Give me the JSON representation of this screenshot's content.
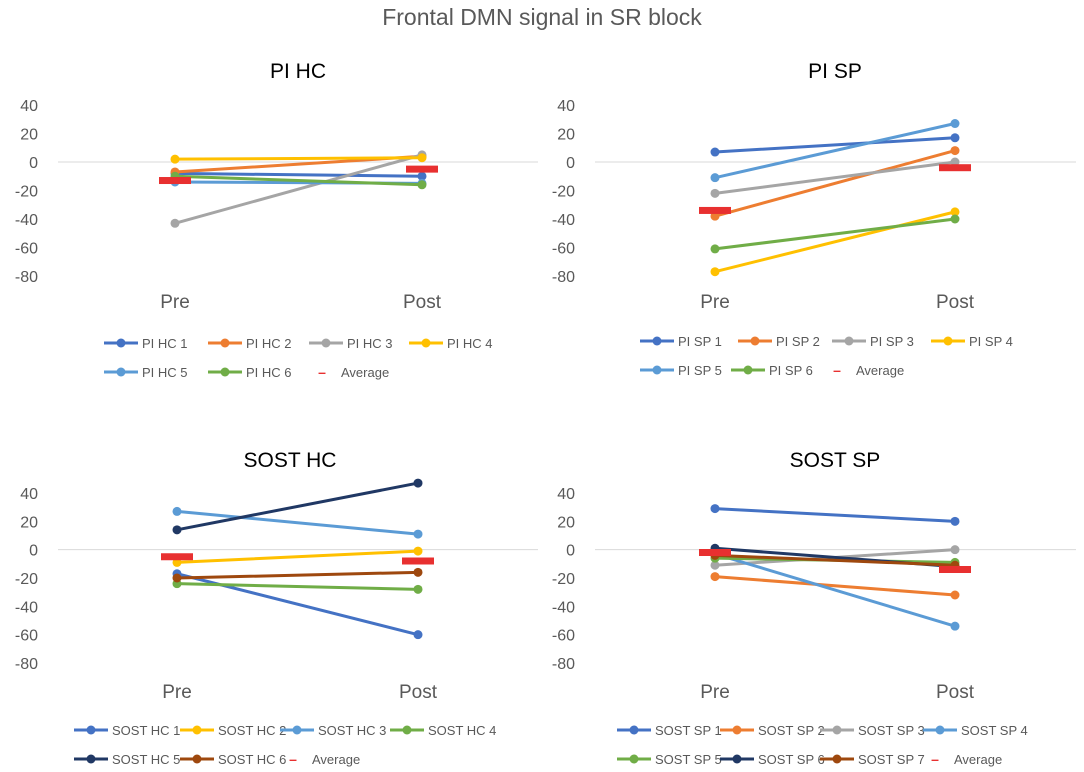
{
  "title": "Frontal DMN signal in SR block",
  "legend_average_marker": "–",
  "chart_data": [
    {
      "type": "line",
      "title": "PI HC",
      "categories": [
        "Pre",
        "Post"
      ],
      "ylim": [
        -80,
        40
      ],
      "yticks": [
        40,
        20,
        0,
        -20,
        -40,
        -60,
        -80
      ],
      "series": [
        {
          "name": "PI HC 1",
          "color": "#4472C4",
          "values": [
            -8,
            -10
          ]
        },
        {
          "name": "PI HC 2",
          "color": "#ED7D31",
          "values": [
            -7,
            4
          ]
        },
        {
          "name": "PI HC 3",
          "color": "#A5A5A5",
          "values": [
            -43,
            5
          ]
        },
        {
          "name": "PI HC 4",
          "color": "#FFC000",
          "values": [
            2,
            3
          ]
        },
        {
          "name": "PI HC 5",
          "color": "#5B9BD5",
          "values": [
            -14,
            -15
          ]
        },
        {
          "name": "PI HC 6",
          "color": "#70AD47",
          "values": [
            -10,
            -16
          ]
        }
      ],
      "average": {
        "name": "Average",
        "color": "#E83030",
        "values": [
          -13,
          -5
        ]
      },
      "legend_rows": [
        [
          0,
          1,
          2,
          3
        ],
        [
          4,
          5,
          "avg"
        ]
      ]
    },
    {
      "type": "line",
      "title": "PI SP",
      "categories": [
        "Pre",
        "Post"
      ],
      "ylim": [
        -80,
        40
      ],
      "yticks": [
        40,
        20,
        0,
        -20,
        -40,
        -60,
        -80
      ],
      "series": [
        {
          "name": "PI SP 1",
          "color": "#4472C4",
          "values": [
            7,
            17
          ]
        },
        {
          "name": "PI SP 2",
          "color": "#ED7D31",
          "values": [
            -38,
            8
          ]
        },
        {
          "name": "PI SP 3",
          "color": "#A5A5A5",
          "values": [
            -22,
            0
          ]
        },
        {
          "name": "PI SP 4",
          "color": "#FFC000",
          "values": [
            -77,
            -35
          ]
        },
        {
          "name": "PI SP 5",
          "color": "#5B9BD5",
          "values": [
            -11,
            27
          ]
        },
        {
          "name": "PI SP 6",
          "color": "#70AD47",
          "values": [
            -61,
            -40
          ]
        }
      ],
      "average": {
        "name": "Average",
        "color": "#E83030",
        "values": [
          -34,
          -4
        ]
      },
      "legend_rows": [
        [
          0,
          1,
          2,
          3
        ],
        [
          4,
          5,
          "avg"
        ]
      ]
    },
    {
      "type": "line",
      "title": "SOST HC",
      "categories": [
        "Pre",
        "Post"
      ],
      "ylim": [
        -80,
        40
      ],
      "yticks": [
        40,
        20,
        0,
        -20,
        -40,
        -60,
        -80
      ],
      "series": [
        {
          "name": "SOST HC 1",
          "color": "#4472C4",
          "values": [
            -17,
            -60
          ]
        },
        {
          "name": "SOST HC 2",
          "color": "#FFC000",
          "values": [
            -9,
            -1
          ]
        },
        {
          "name": "SOST HC 3",
          "color": "#5B9BD5",
          "values": [
            27,
            11
          ]
        },
        {
          "name": "SOST HC 4",
          "color": "#70AD47",
          "values": [
            -24,
            -28
          ]
        },
        {
          "name": "SOST HC 5",
          "color": "#203864",
          "values": [
            14,
            47
          ]
        },
        {
          "name": "SOST HC 6",
          "color": "#9E480E",
          "values": [
            -20,
            -16
          ]
        }
      ],
      "average": {
        "name": "Average",
        "color": "#E83030",
        "values": [
          -5,
          -8
        ]
      },
      "legend_rows": [
        [
          0,
          1,
          2,
          3
        ],
        [
          4,
          5,
          "avg"
        ]
      ]
    },
    {
      "type": "line",
      "title": "SOST SP",
      "categories": [
        "Pre",
        "Post"
      ],
      "ylim": [
        -80,
        40
      ],
      "yticks": [
        40,
        20,
        0,
        -20,
        -40,
        -60,
        -80
      ],
      "series": [
        {
          "name": "SOST SP 1",
          "color": "#4472C4",
          "values": [
            29,
            20
          ]
        },
        {
          "name": "SOST SP 2",
          "color": "#ED7D31",
          "values": [
            -19,
            -32
          ]
        },
        {
          "name": "SOST SP 3",
          "color": "#A5A5A5",
          "values": [
            -11,
            0
          ]
        },
        {
          "name": "SOST SP 4",
          "color": "#5B9BD5",
          "values": [
            -3,
            -54
          ]
        },
        {
          "name": "SOST SP 5",
          "color": "#70AD47",
          "values": [
            -6,
            -9
          ]
        },
        {
          "name": "SOST SP 6",
          "color": "#203864",
          "values": [
            1,
            -12
          ]
        },
        {
          "name": "SOST SP 7",
          "color": "#9E480E",
          "values": [
            -4,
            -11
          ]
        }
      ],
      "average": {
        "name": "Average",
        "color": "#E83030",
        "values": [
          -2,
          -14
        ]
      },
      "legend_rows": [
        [
          0,
          1,
          2,
          3
        ],
        [
          4,
          5,
          6,
          "avg"
        ]
      ]
    }
  ]
}
